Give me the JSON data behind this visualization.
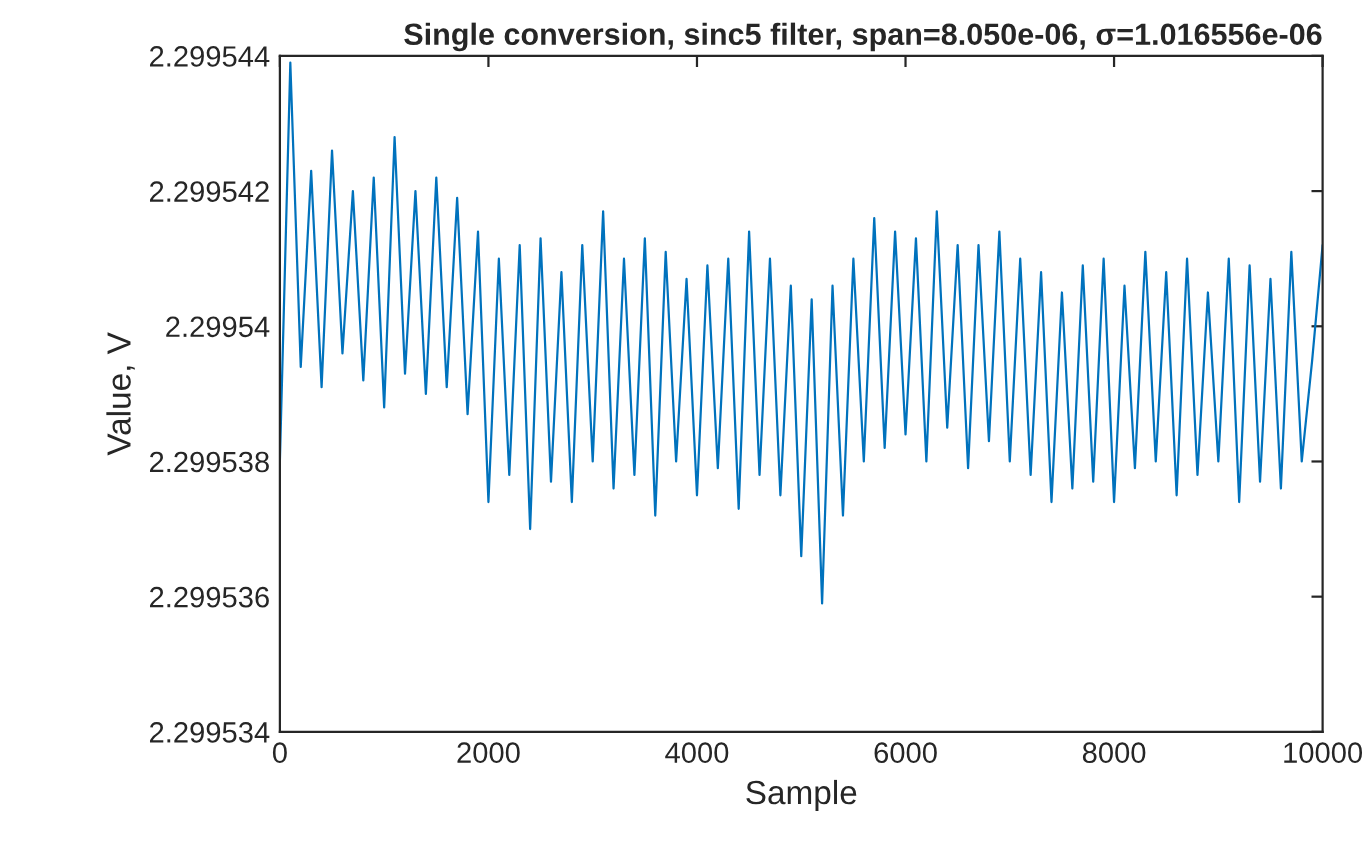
{
  "chart_data": {
    "type": "line",
    "title": "Single conversion, sinc5 filter, span=8.050e-06, σ=1.016556e-06",
    "xlabel": "Sample",
    "ylabel": "Value, V",
    "x": [
      0,
      100,
      200,
      300,
      400,
      500,
      600,
      700,
      800,
      900,
      1000,
      1100,
      1200,
      1300,
      1400,
      1500,
      1600,
      1700,
      1800,
      1900,
      2000,
      2100,
      2200,
      2300,
      2400,
      2500,
      2600,
      2700,
      2800,
      2900,
      3000,
      3100,
      3200,
      3300,
      3400,
      3500,
      3600,
      3700,
      3800,
      3900,
      4000,
      4100,
      4200,
      4300,
      4400,
      4500,
      4600,
      4700,
      4800,
      4900,
      5000,
      5100,
      5200,
      5300,
      5400,
      5500,
      5600,
      5700,
      5800,
      5900,
      6000,
      6100,
      6200,
      6300,
      6400,
      6500,
      6600,
      6700,
      6800,
      6900,
      7000,
      7100,
      7200,
      7300,
      7400,
      7500,
      7600,
      7700,
      7800,
      7900,
      8000,
      8100,
      8200,
      8300,
      8400,
      8500,
      8600,
      8700,
      8800,
      8900,
      9000,
      9100,
      9200,
      9300,
      9400,
      9500,
      9600,
      9700,
      9800,
      9900,
      10000
    ],
    "series": [
      {
        "color": "#0072bd",
        "values": [
          2.299538,
          2.2995439,
          2.2995394,
          2.2995423,
          2.2995391,
          2.2995426,
          2.2995396,
          2.299542,
          2.2995392,
          2.2995422,
          2.2995388,
          2.2995428,
          2.2995393,
          2.299542,
          2.299539,
          2.2995422,
          2.2995391,
          2.2995419,
          2.2995387,
          2.2995414,
          2.2995374,
          2.299541,
          2.2995378,
          2.2995412,
          2.299537,
          2.2995413,
          2.2995377,
          2.2995408,
          2.2995374,
          2.2995412,
          2.299538,
          2.2995417,
          2.2995376,
          2.299541,
          2.2995378,
          2.2995413,
          2.2995372,
          2.2995411,
          2.299538,
          2.2995407,
          2.2995375,
          2.2995409,
          2.2995379,
          2.299541,
          2.2995373,
          2.2995414,
          2.2995378,
          2.299541,
          2.2995375,
          2.2995406,
          2.2995366,
          2.2995404,
          2.2995359,
          2.2995406,
          2.2995372,
          2.299541,
          2.299538,
          2.2995416,
          2.2995382,
          2.2995414,
          2.2995384,
          2.2995413,
          2.299538,
          2.2995417,
          2.2995385,
          2.2995412,
          2.2995379,
          2.2995412,
          2.2995383,
          2.2995414,
          2.299538,
          2.299541,
          2.2995378,
          2.2995408,
          2.2995374,
          2.2995405,
          2.2995376,
          2.2995409,
          2.2995377,
          2.299541,
          2.2995374,
          2.2995406,
          2.2995379,
          2.2995411,
          2.299538,
          2.2995408,
          2.2995375,
          2.299541,
          2.2995378,
          2.2995405,
          2.299538,
          2.299541,
          2.2995374,
          2.2995409,
          2.2995377,
          2.2995407,
          2.2995376,
          2.2995411,
          2.299538,
          2.2995395,
          2.2995412
        ]
      }
    ],
    "xlim": [
      0,
      10000
    ],
    "xticks": [
      0,
      2000,
      4000,
      6000,
      8000,
      10000
    ],
    "ylim": [
      2.299534,
      2.299544
    ],
    "yticks": [
      2.299534,
      2.299536,
      2.299538,
      2.29954,
      2.299542,
      2.299544
    ],
    "grid": false,
    "legend": false,
    "line_style": "solid",
    "marker": "none"
  }
}
